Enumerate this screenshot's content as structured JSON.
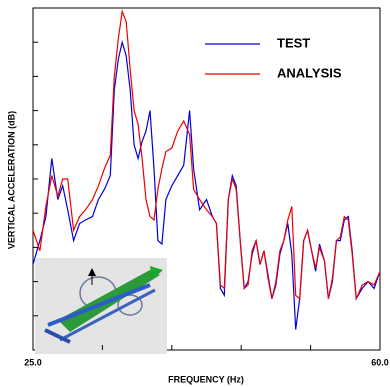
{
  "chart_data": {
    "type": "line",
    "x_label": "FREQUENCY (Hz)",
    "y_label": "VERTICAL ACCELERATION (dB)",
    "x": [
      25.0,
      25.7,
      26.3,
      26.9,
      27.5,
      28.0,
      28.5,
      29.1,
      29.7,
      30.3,
      31.0,
      31.6,
      32.2,
      32.8,
      33.2,
      33.6,
      34.0,
      34.4,
      34.8,
      35.2,
      35.6,
      36.0,
      36.4,
      36.8,
      37.2,
      37.6,
      38.0,
      38.4,
      39.0,
      39.6,
      40.2,
      40.8,
      41.2,
      41.8,
      42.5,
      43.1,
      43.5,
      43.9,
      44.3,
      44.7,
      45.1,
      45.5,
      45.9,
      46.3,
      46.7,
      47.1,
      47.5,
      47.9,
      48.3,
      48.7,
      49.1,
      49.5,
      49.9,
      50.3,
      50.7,
      51.1,
      51.5,
      51.9,
      52.3,
      52.7,
      53.1,
      53.5,
      53.9,
      54.4,
      54.8,
      55.2,
      55.6,
      56.0,
      56.4,
      56.8,
      57.2,
      57.6,
      58.2,
      58.8,
      59.4,
      60.0
    ],
    "series": [
      {
        "name": "TEST",
        "color": "#0000dd",
        "values": [
          25,
          32,
          39,
          56,
          44,
          48,
          41,
          32,
          37,
          38,
          39,
          44,
          47,
          51,
          76,
          85,
          90,
          86,
          76,
          60,
          56,
          61,
          64,
          70,
          53,
          32,
          31,
          44,
          48,
          51,
          54,
          70,
          53,
          41,
          44,
          39,
          37,
          18,
          16,
          44,
          51,
          48,
          32,
          18,
          20,
          28,
          32,
          25,
          29,
          22,
          15,
          19,
          28,
          32,
          37,
          28,
          6,
          15,
          32,
          35,
          29,
          23,
          31,
          26,
          15,
          20,
          32,
          32,
          38,
          39,
          29,
          15,
          18,
          20,
          18,
          23
        ]
      },
      {
        "name": "ANALYSIS",
        "color": "#ee0000",
        "values": [
          35,
          29,
          42,
          51,
          45,
          50,
          50,
          35,
          39,
          41,
          44,
          48,
          53,
          57,
          80,
          91,
          99,
          96,
          82,
          70,
          66,
          56,
          44,
          39,
          38,
          47,
          53,
          58,
          59,
          64,
          67,
          63,
          47,
          44,
          41,
          39,
          37,
          19,
          18,
          44,
          50,
          47,
          32,
          18,
          19,
          29,
          32,
          25,
          29,
          21,
          15,
          20,
          29,
          32,
          38,
          42,
          16,
          15,
          32,
          35,
          29,
          24,
          30,
          26,
          15,
          21,
          32,
          33,
          39,
          38,
          28,
          15,
          19,
          20,
          19,
          23
        ]
      }
    ],
    "xlim": [
      25,
      60
    ],
    "xticks": [
      {
        "value": 25,
        "label": "25.0"
      },
      {
        "value": 60,
        "label": "60.0"
      }
    ],
    "x_minor_ticks": [
      32,
      39,
      46,
      53
    ],
    "ylim": [
      0,
      100
    ],
    "y_minor_ticks": [
      10,
      20,
      30,
      40,
      50,
      60,
      70,
      80,
      90
    ],
    "legend": "upper right"
  }
}
